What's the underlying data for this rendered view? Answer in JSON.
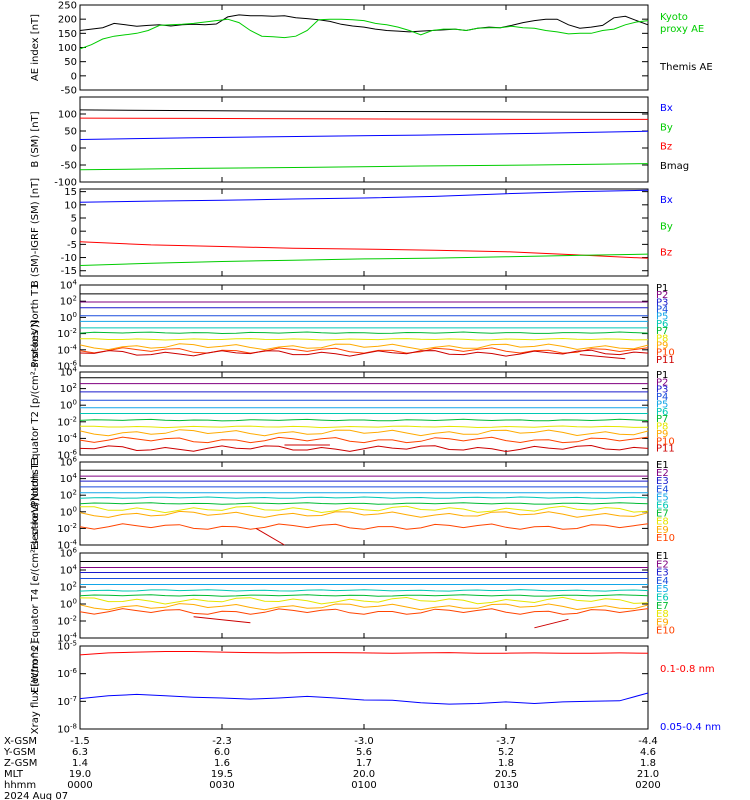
{
  "colors": {
    "black": "#000000",
    "green": "#00cc00",
    "blue": "#0000ff",
    "red": "#ff0000",
    "ch": [
      "#000000",
      "#800080",
      "#1a1acc",
      "#1a4ddd",
      "#12a6e8",
      "#00c8b4",
      "#00bb33",
      "#e6e600",
      "#ffaa00",
      "#ff4400",
      "#cc0000"
    ]
  },
  "panels": [
    {
      "ylabel": "AE index [nT]",
      "ylim": [
        -50,
        250
      ],
      "ticks": [
        "250",
        "200",
        "150",
        "100",
        "50",
        "0",
        "-50"
      ],
      "tick_values": [
        250,
        200,
        150,
        100,
        50,
        0,
        -50
      ],
      "log": false,
      "legend": [
        {
          "text": "Kyoto proxy AE",
          "color": "green",
          "lines": [
            "Kyoto",
            "proxy AE"
          ]
        },
        {
          "text": "Themis AE",
          "color": "black",
          "lines": [
            "Themis AE"
          ]
        }
      ],
      "series": [
        {
          "name": "Themis AE",
          "color": "black",
          "y": [
            160,
            165,
            170,
            185,
            180,
            175,
            178,
            180,
            176,
            180,
            182,
            180,
            183,
            208,
            215,
            212,
            212,
            210,
            212,
            205,
            202,
            198,
            192,
            182,
            176,
            172,
            165,
            160,
            158,
            155,
            158,
            160,
            162,
            165,
            160,
            168,
            172,
            170,
            178,
            188,
            195,
            200,
            200,
            180,
            168,
            172,
            178,
            205,
            210,
            195,
            180
          ]
        },
        {
          "name": "Kyoto proxy AE",
          "color": "green",
          "y": [
            95,
            110,
            130,
            140,
            145,
            150,
            160,
            178,
            180,
            182,
            185,
            190,
            195,
            200,
            188,
            160,
            140,
            138,
            135,
            140,
            160,
            198,
            200,
            200,
            198,
            195,
            185,
            180,
            172,
            160,
            145,
            160,
            165,
            165,
            160,
            168,
            170,
            170,
            175,
            170,
            168,
            160,
            155,
            148,
            150,
            150,
            160,
            165,
            180,
            190,
            195
          ]
        }
      ]
    },
    {
      "ylabel": "B (SM) [nT]",
      "ylim": [
        -100,
        150
      ],
      "ticks": [
        "100",
        "50",
        "0",
        "-50",
        "-100"
      ],
      "tick_values": [
        100,
        50,
        0,
        -50,
        -100
      ],
      "log": false,
      "legend": [
        {
          "text": "Bx",
          "color": "blue",
          "lines": [
            "Bx"
          ]
        },
        {
          "text": "By",
          "color": "green",
          "lines": [
            "By"
          ]
        },
        {
          "text": "Bz",
          "color": "red",
          "lines": [
            "Bz"
          ]
        },
        {
          "text": "Bmag",
          "color": "black",
          "lines": [
            "Bmag"
          ]
        }
      ],
      "series": [
        {
          "name": "Bmag",
          "color": "black",
          "y": [
            112,
            110,
            108,
            107,
            106,
            104
          ]
        },
        {
          "name": "Bz",
          "color": "red",
          "y": [
            88,
            87,
            86,
            85,
            84,
            84
          ]
        },
        {
          "name": "Bx",
          "color": "blue",
          "y": [
            25,
            30,
            34,
            38,
            43,
            49
          ]
        },
        {
          "name": "By",
          "color": "green",
          "y": [
            -64,
            -60,
            -57,
            -53,
            -50,
            -46
          ]
        }
      ]
    },
    {
      "ylabel": "B (SM)-IGRF (SM) [nT]",
      "ylim": [
        -17,
        16
      ],
      "ticks": [
        "15",
        "10",
        "5",
        "0",
        "-5",
        "-10",
        "-15"
      ],
      "tick_values": [
        15,
        10,
        5,
        0,
        -5,
        -10,
        -15
      ],
      "log": false,
      "legend": [
        {
          "text": "Bx",
          "color": "blue",
          "lines": [
            "Bx"
          ]
        },
        {
          "text": "By",
          "color": "green",
          "lines": [
            "By"
          ]
        },
        {
          "text": "Bz",
          "color": "red",
          "lines": [
            "Bz"
          ]
        }
      ],
      "series": [
        {
          "name": "Bx",
          "color": "blue",
          "y": [
            11,
            11.4,
            11.7,
            12.2,
            12.6,
            13.2,
            14.2,
            15,
            15.5
          ]
        },
        {
          "name": "Bz",
          "color": "red",
          "y": [
            -4,
            -5.2,
            -5.8,
            -6.5,
            -6.8,
            -7.2,
            -7.8,
            -9,
            -10.3
          ]
        },
        {
          "name": "By",
          "color": "green",
          "y": [
            -13,
            -12.2,
            -11.5,
            -11,
            -10.5,
            -10.2,
            -9.7,
            -9.2,
            -8.7
          ]
        }
      ]
    },
    {
      "ylabel": "Protons North T1",
      "ylim": [
        -6,
        4
      ],
      "ticks": [
        "10^4",
        "10^2",
        "10^0",
        "10^-2",
        "10^-4",
        "10^-6"
      ],
      "tick_values": [
        4,
        2,
        0,
        -2,
        -4,
        -6
      ],
      "log": true,
      "channels": [
        "P1",
        "P2",
        "P3",
        "P4",
        "P5",
        "P6",
        "P7",
        "P8",
        "P9",
        "P10",
        "P11"
      ],
      "levels": [
        2.9,
        1.9,
        1.2,
        0.2,
        -0.5,
        -1.3,
        -1.9,
        -2.7,
        -3.6,
        -4.1,
        -4.4
      ],
      "segments": [
        [
          0.88,
          0.96,
          -4.6,
          -5.1
        ]
      ]
    },
    {
      "ylabel": "Protons Equator T2 [p/(cm²-s-sr-keV)]",
      "ylim": [
        -6,
        4
      ],
      "ticks": [
        "10^4",
        "10^2",
        "10^0",
        "10^-2",
        "10^-4",
        "10^-6"
      ],
      "tick_values": [
        4,
        2,
        0,
        -2,
        -4,
        -6
      ],
      "log": true,
      "channels": [
        "P1",
        "P2",
        "P3",
        "P4",
        "P5",
        "P6",
        "P7",
        "P8",
        "P9",
        "P10",
        "P11"
      ],
      "levels": [
        3.3,
        2.6,
        1.6,
        0.6,
        -0.3,
        -1.0,
        -1.8,
        -2.6,
        -3.3,
        -4.2,
        -5.2
      ],
      "segments": [
        [
          0.36,
          0.44,
          -4.8,
          -4.8
        ]
      ]
    },
    {
      "ylabel": "Electrons North T3",
      "ylim": [
        -4,
        6
      ],
      "ticks": [
        "10^6",
        "10^4",
        "10^2",
        "10^0",
        "10^-2",
        "10^-4"
      ],
      "tick_values": [
        6,
        4,
        2,
        0,
        -2,
        -4
      ],
      "log": true,
      "channels": [
        "E1",
        "E2",
        "E3",
        "E4",
        "E5",
        "E6",
        "E7",
        "E8",
        "E9",
        "E10"
      ],
      "levels": [
        5.0,
        4.3,
        3.7,
        3.0,
        2.3,
        1.7,
        1.0,
        0.3,
        -0.3,
        -1.8
      ],
      "segments": [
        [
          0.31,
          0.36,
          -2.0,
          -4.0
        ]
      ]
    },
    {
      "ylabel": "Electrons Equator T4 [e/(cm²-s-sr-keV)]",
      "ylim": [
        -4,
        6
      ],
      "ticks": [
        "10^6",
        "10^4",
        "10^2",
        "10^0",
        "10^-2",
        "10^-4"
      ],
      "tick_values": [
        6,
        4,
        2,
        0,
        -2,
        -4
      ],
      "log": true,
      "channels": [
        "E1",
        "E2",
        "E3",
        "E4",
        "E5",
        "E6",
        "E7",
        "E8",
        "E9",
        "E10"
      ],
      "levels": [
        5.0,
        4.3,
        3.7,
        3.0,
        2.3,
        1.6,
        1.0,
        0.4,
        -0.3,
        -0.9
      ],
      "segments": [
        [
          0.2,
          0.3,
          -1.5,
          -2.2
        ],
        [
          0.8,
          0.86,
          -2.8,
          -1.8
        ]
      ]
    },
    {
      "ylabel": "Xray flux [W/m^2]",
      "ylim": [
        -8,
        -5
      ],
      "ticks": [
        "10^-5",
        "10^-6",
        "10^-7",
        "10^-8"
      ],
      "tick_values": [
        -5,
        -6,
        -7,
        -8
      ],
      "log": true,
      "legend": [
        {
          "text": "0.1-0.8 nm",
          "color": "red",
          "lines": [
            "0.1-0.8 nm"
          ]
        },
        {
          "text": "0.05-0.4 nm",
          "color": "blue",
          "lines": [
            "0.05-0.4 nm"
          ]
        }
      ],
      "series": [
        {
          "name": "0.1-0.8 nm",
          "color": "red",
          "y": [
            -5.32,
            -5.25,
            -5.22,
            -5.2,
            -5.2,
            -5.22,
            -5.24,
            -5.25,
            -5.24,
            -5.24,
            -5.25,
            -5.26,
            -5.25,
            -5.24,
            -5.26,
            -5.26,
            -5.25,
            -5.26,
            -5.26,
            -5.25,
            -5.26
          ]
        },
        {
          "name": "0.05-0.4 nm",
          "color": "blue",
          "y": [
            -6.9,
            -6.8,
            -6.75,
            -6.8,
            -6.85,
            -6.88,
            -6.92,
            -6.88,
            -6.82,
            -6.88,
            -6.95,
            -6.96,
            -7.05,
            -7.1,
            -7.08,
            -7.02,
            -7.08,
            -7.02,
            -7.0,
            -6.98,
            -6.7
          ]
        }
      ]
    }
  ],
  "ephemeris": {
    "rows": [
      {
        "label": "X-GSM",
        "values": [
          "-1.5",
          "-2.3",
          "-3.0",
          "-3.7",
          "-4.4"
        ]
      },
      {
        "label": "Y-GSM",
        "values": [
          "6.3",
          "6.0",
          "5.6",
          "5.2",
          "4.6"
        ]
      },
      {
        "label": "Z-GSM",
        "values": [
          "1.4",
          "1.6",
          "1.7",
          "1.8",
          "1.8"
        ]
      },
      {
        "label": "MLT",
        "values": [
          "19.0",
          "19.5",
          "20.0",
          "20.5",
          "21.0"
        ]
      },
      {
        "label": "hhmm",
        "values": [
          "0000",
          "0030",
          "0100",
          "0130",
          "0200"
        ]
      }
    ],
    "date": "2024 Aug 07"
  }
}
